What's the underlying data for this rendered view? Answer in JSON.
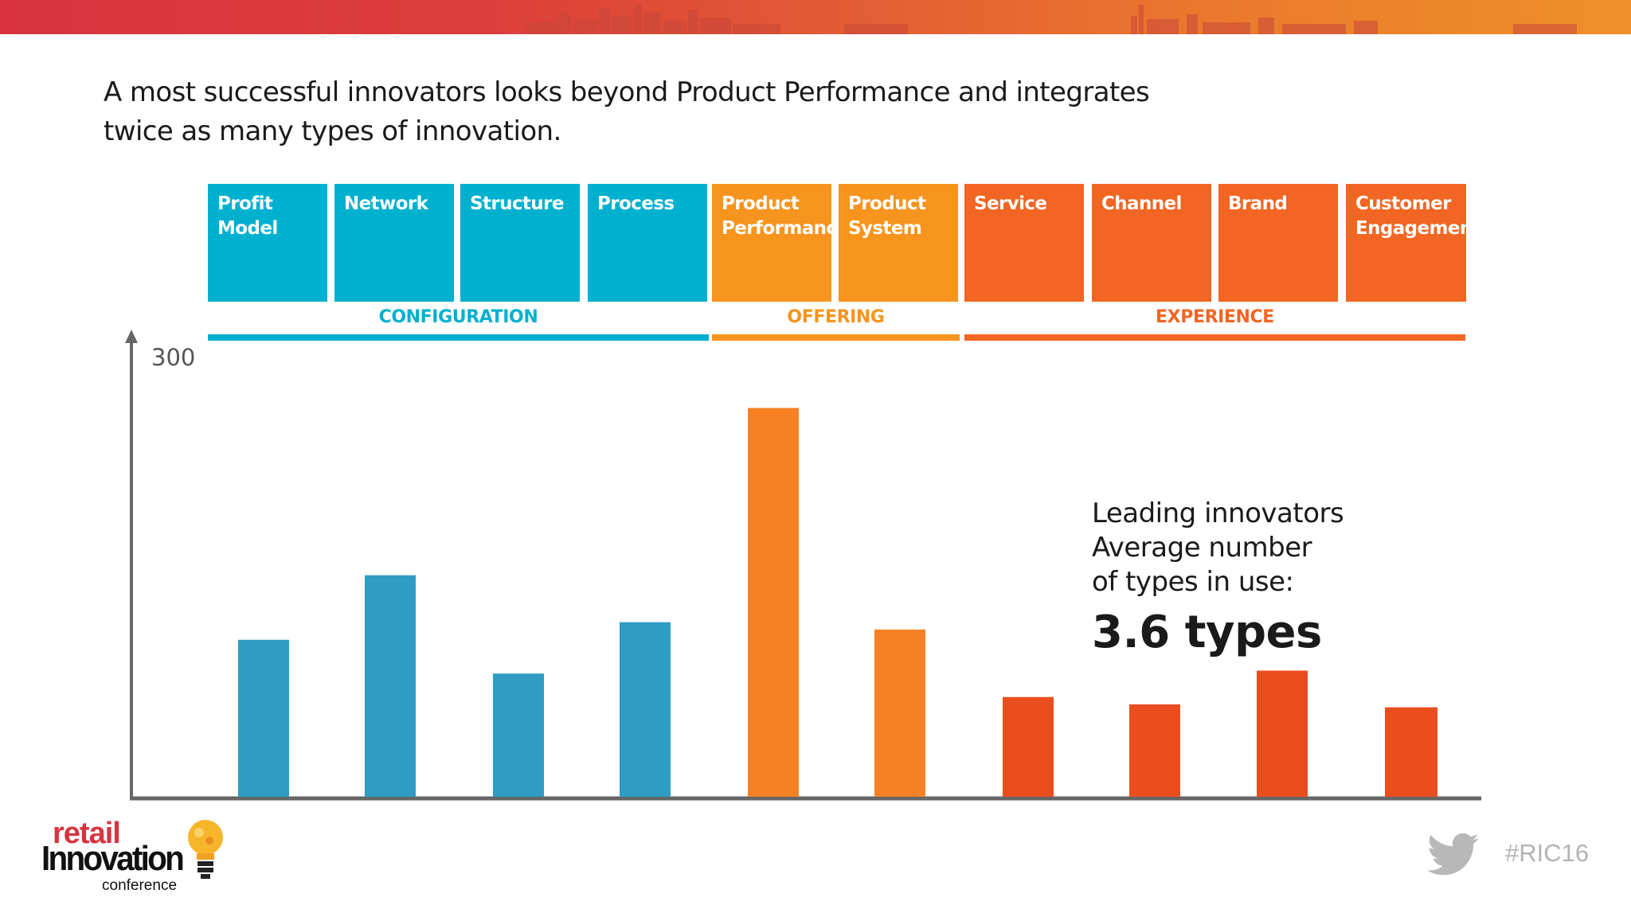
{
  "slide": {
    "headline_line1": "A most successful  innovators looks beyond Product Performance and integrates",
    "headline_line2": "twice as many types of innovation.",
    "hashtag": "#RIC16"
  },
  "types": [
    {
      "label": "Profit\nModel",
      "group": "configuration"
    },
    {
      "label": "Network",
      "group": "configuration"
    },
    {
      "label": "Structure",
      "group": "configuration"
    },
    {
      "label": "Process",
      "group": "configuration"
    },
    {
      "label": "Product\nPerformance",
      "group": "offering"
    },
    {
      "label": "Product\nSystem",
      "group": "offering"
    },
    {
      "label": "Service",
      "group": "experience"
    },
    {
      "label": "Channel",
      "group": "experience"
    },
    {
      "label": "Brand",
      "group": "experience"
    },
    {
      "label": "Customer\nEngagement",
      "group": "experience"
    }
  ],
  "groups": {
    "configuration": {
      "label": "CONFIGURATION",
      "box_color": "#00b0cf",
      "line_color": "#00b0cf",
      "bar_color": "#2f9cc3"
    },
    "offering": {
      "label": "OFFERING",
      "box_color": "#f7941d",
      "line_color": "#f7941d",
      "bar_color": "#f68125"
    },
    "experience": {
      "label": "EXPERIENCE",
      "box_color": "#f26522",
      "line_color": "#f26522",
      "bar_color": "#ea4e1f"
    }
  },
  "chart_data": {
    "type": "bar",
    "categories": [
      "Profit Model",
      "Network",
      "Structure",
      "Process",
      "Product Performance",
      "Product System",
      "Service",
      "Channel",
      "Brand",
      "Customer Engagement"
    ],
    "values": [
      107,
      151,
      84,
      119,
      265,
      114,
      68,
      63,
      86,
      61
    ],
    "ylim": [
      0,
      330
    ],
    "y_tick_label": "300",
    "grid": false
  },
  "callout": {
    "line1": "Leading innovators",
    "line2": "Average number",
    "line3": "of types in use:",
    "value": "3.6 types"
  },
  "logo": {
    "word1": "retail",
    "word2": "Innovation",
    "word3": "conference"
  }
}
